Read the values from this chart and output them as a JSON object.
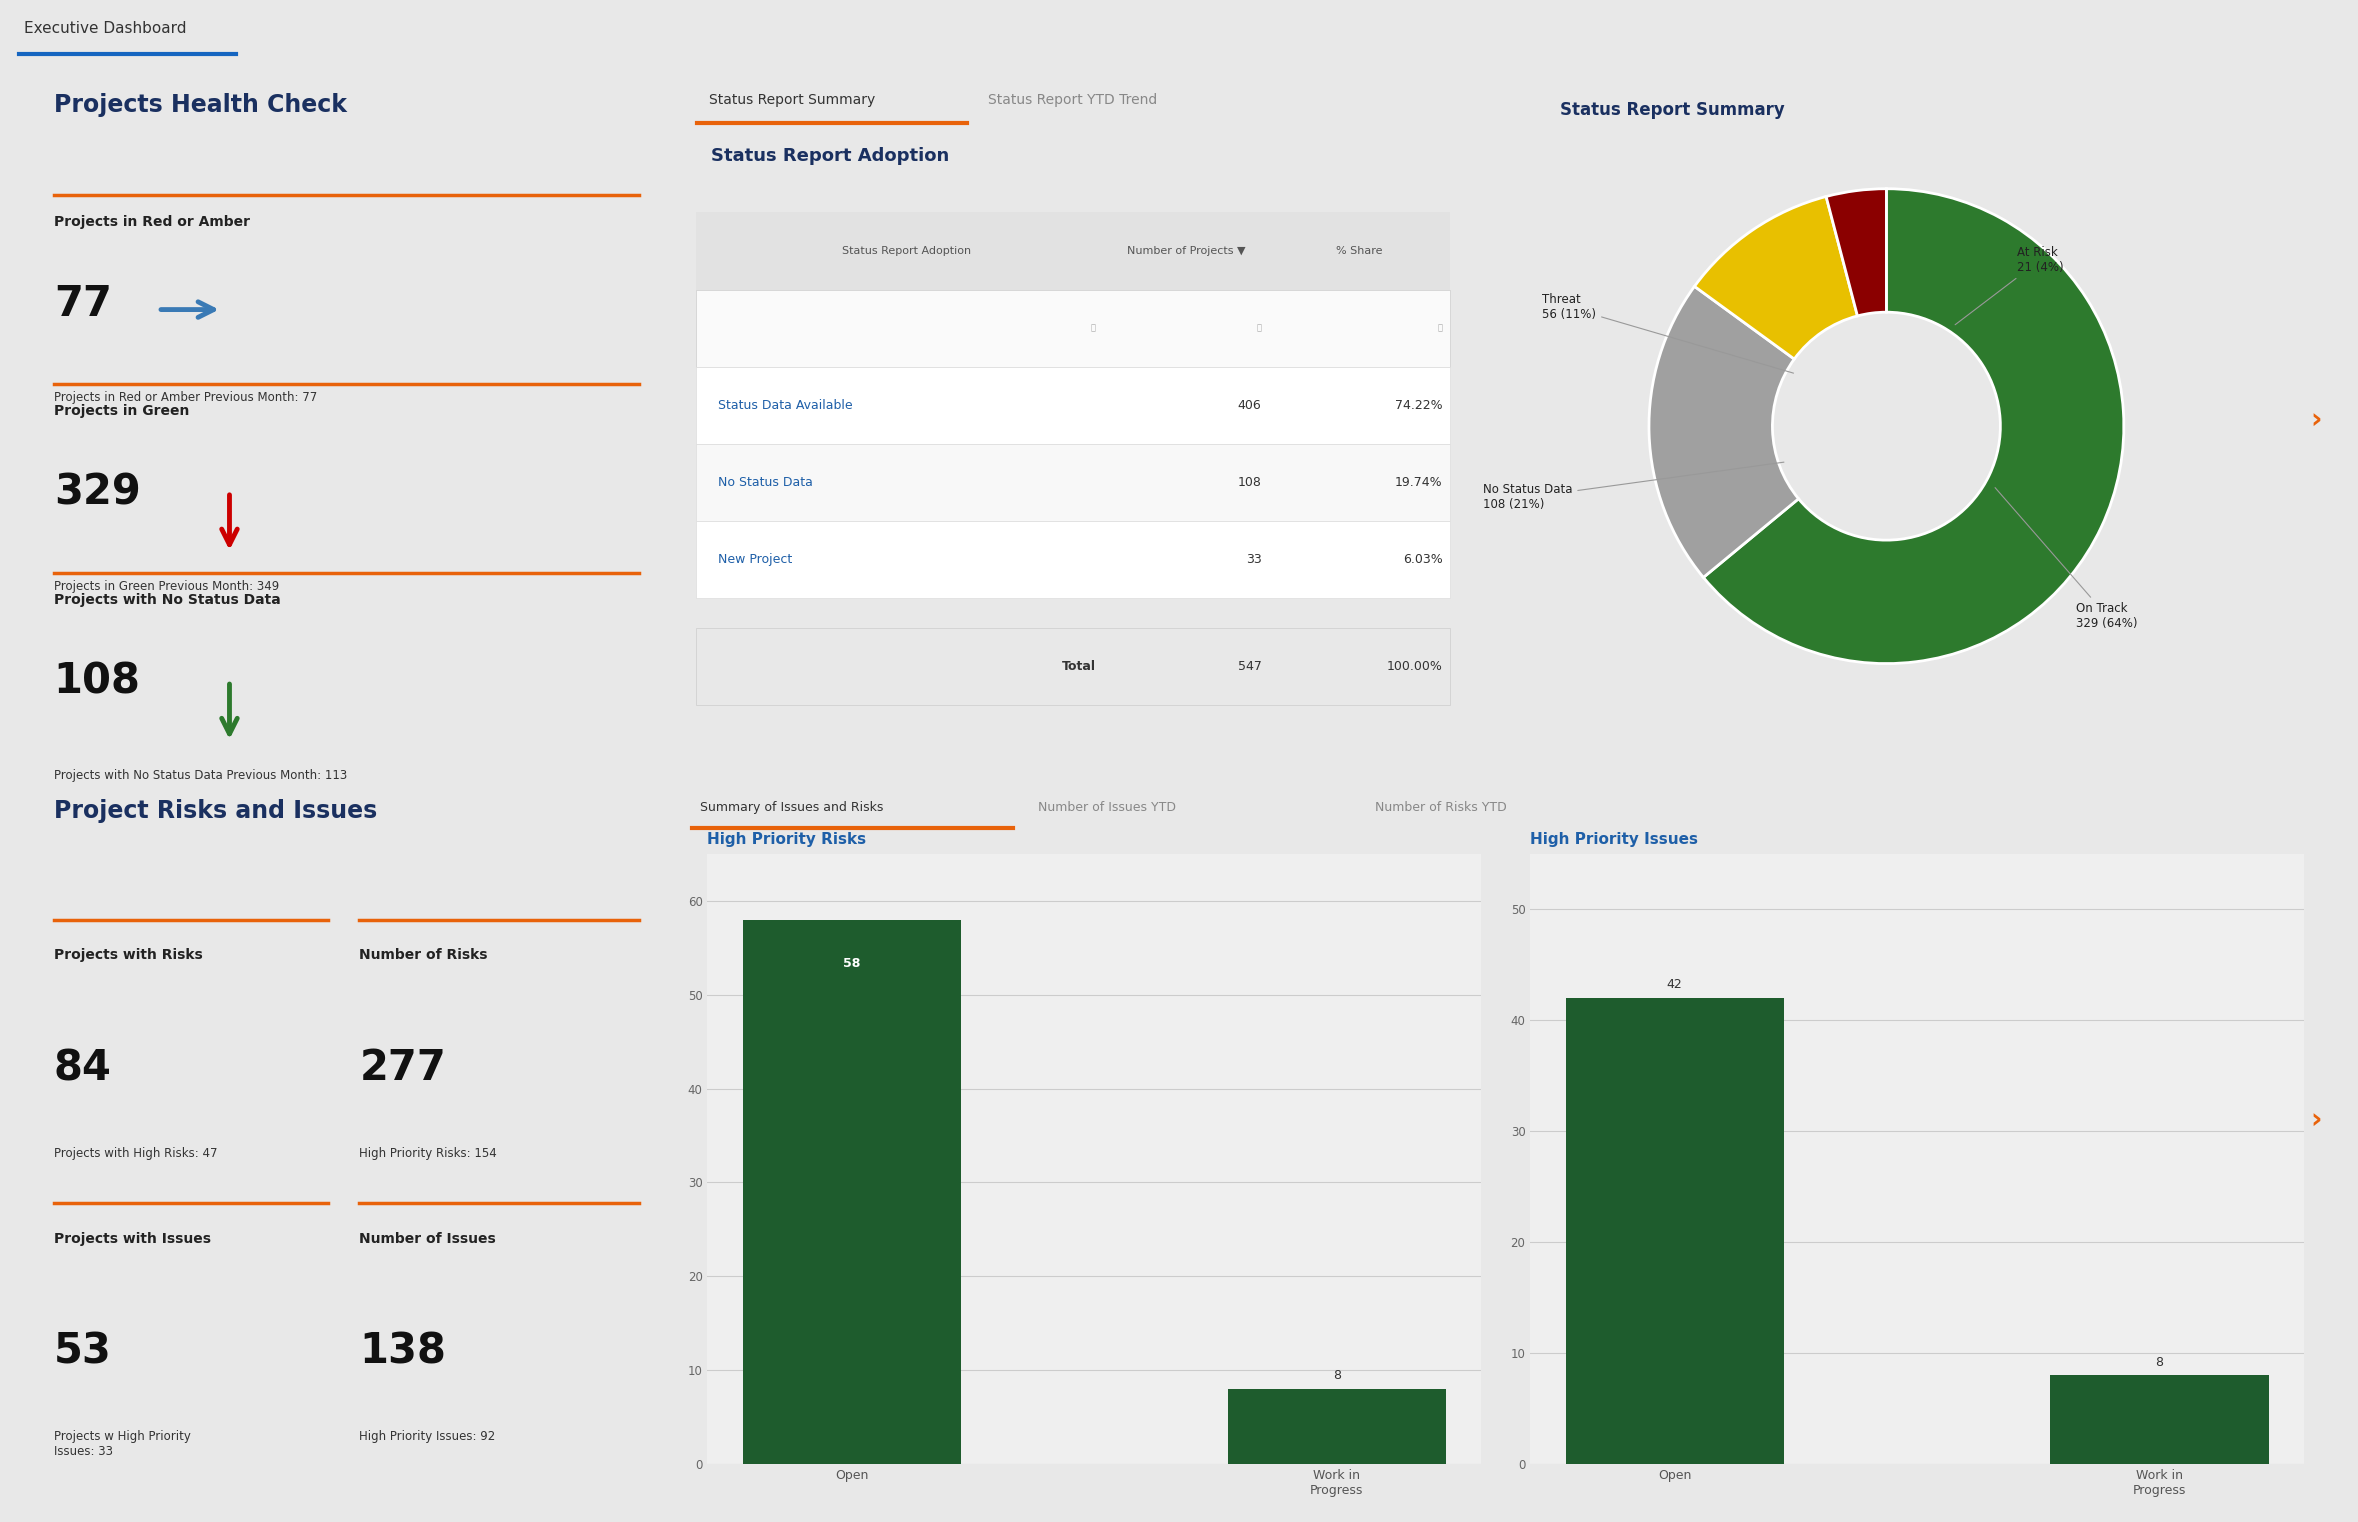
{
  "title": "Executive Dashboard",
  "bg_color": "#e8e8e8",
  "panel_bg": "#ffffff",
  "health_check": {
    "title": "Projects Health Check",
    "metrics": [
      {
        "label": "Projects in Red or Amber",
        "value": "77",
        "arrow": "right",
        "arrow_color": "#3a7ab5",
        "prev_label": "Projects in Red or Amber Previous Month: 77"
      },
      {
        "label": "Projects in Green",
        "value": "329",
        "arrow": "down",
        "arrow_color": "#cc0000",
        "prev_label": "Projects in Green Previous Month: 349"
      },
      {
        "label": "Projects with No Status Data",
        "value": "108",
        "arrow": "down",
        "arrow_color": "#2d7a2d",
        "prev_label": "Projects with No Status Data Previous Month: 113"
      }
    ]
  },
  "status_report": {
    "tabs": [
      "Status Report Summary",
      "Status Report YTD Trend"
    ],
    "adoption_title": "Status Report Adoption",
    "table_headers": [
      "Status Report Adoption",
      "Number of Projects ▼",
      "% Share"
    ],
    "table_rows": [
      [
        "Status Data Available",
        "406",
        "74.22%"
      ],
      [
        "No Status Data",
        "108",
        "19.74%"
      ],
      [
        "New Project",
        "33",
        "6.03%"
      ]
    ],
    "table_total": [
      "Total",
      "547",
      "100.00%"
    ],
    "pie_title": "Status Report Summary",
    "pie_values": [
      329,
      108,
      56,
      21
    ],
    "pie_colors": [
      "#2d7a2d",
      "#a0a0a0",
      "#e8c000",
      "#8b0000"
    ]
  },
  "risks_issues": {
    "title": "Project Risks and Issues",
    "tabs": [
      "Summary of Issues and Risks",
      "Number of Issues YTD",
      "Number of Risks YTD"
    ],
    "metrics": [
      {
        "label": "Projects with Risks",
        "value": "84",
        "sub_label": "Projects with High Risks: 47"
      },
      {
        "label": "Number of Risks",
        "value": "277",
        "sub_label": "High Priority Risks: 154"
      },
      {
        "label": "Projects with Issues",
        "value": "53",
        "sub_label": "Projects w High Priority\nIssues: 33"
      },
      {
        "label": "Number of Issues",
        "value": "138",
        "sub_label": "High Priority Issues: 92"
      }
    ],
    "risks_chart": {
      "title": "High Priority Risks",
      "categories": [
        "Open",
        "Work in\nProgress"
      ],
      "values": [
        58,
        8
      ],
      "bar_color": "#1e5c2d",
      "ylim": [
        0,
        65
      ],
      "yticks": [
        0,
        10,
        20,
        30,
        40,
        50,
        60
      ]
    },
    "issues_chart": {
      "title": "High Priority Issues",
      "categories": [
        "Open",
        "Work in\nProgress"
      ],
      "values": [
        42,
        8
      ],
      "bar_color": "#1e5c2d",
      "ylim": [
        0,
        55
      ],
      "yticks": [
        0,
        10,
        20,
        30,
        40,
        50
      ]
    }
  },
  "orange_line_color": "#e8620a",
  "dark_blue": "#1a3060",
  "link_blue": "#1e5fa8"
}
